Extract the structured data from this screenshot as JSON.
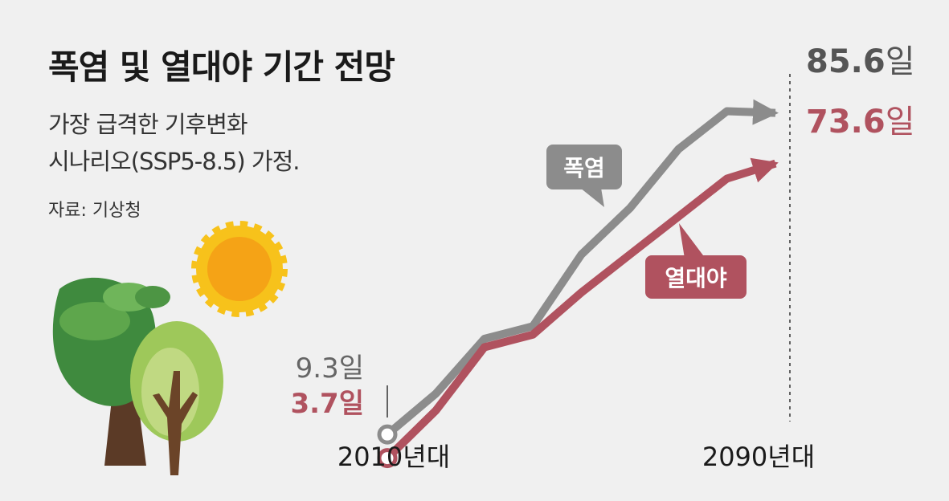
{
  "chart_data": {
    "type": "line",
    "title": "폭염 및 열대야 기간 전망",
    "subtitle_lines": [
      "가장 급격한 기후변화",
      "시나리오(SSP5-8.5) 가정."
    ],
    "source": "자료: 기상청",
    "x_tick_labels": [
      "2010년대",
      "2090년대"
    ],
    "x": [
      2010,
      2020,
      2030,
      2040,
      2050,
      2060,
      2070,
      2080,
      2090
    ],
    "ylim": [
      0,
      90
    ],
    "series": [
      {
        "name": "폭염",
        "color": "#8c8c8c",
        "values": [
          9.3,
          19.0,
          32.0,
          35.0,
          52.0,
          63.0,
          77.0,
          86.0,
          85.6
        ],
        "start_label": "9.3일",
        "end_label": "85.6일",
        "end_label_number": "85.6",
        "end_label_unit": "일"
      },
      {
        "name": "열대야",
        "color": "#b0525f",
        "values": [
          3.7,
          15.0,
          30.0,
          33.0,
          43.0,
          52.0,
          61.0,
          70.0,
          73.6
        ],
        "start_label": "3.7일",
        "end_label": "73.6일",
        "end_label_number": "73.6",
        "end_label_unit": "일"
      }
    ],
    "grid": false,
    "legend": "callout labels on lines"
  },
  "colors": {
    "background": "#f0f0f0",
    "heat_wave": "#8c8c8c",
    "tropical_night": "#b0525f",
    "text": "#1a1a1a"
  }
}
